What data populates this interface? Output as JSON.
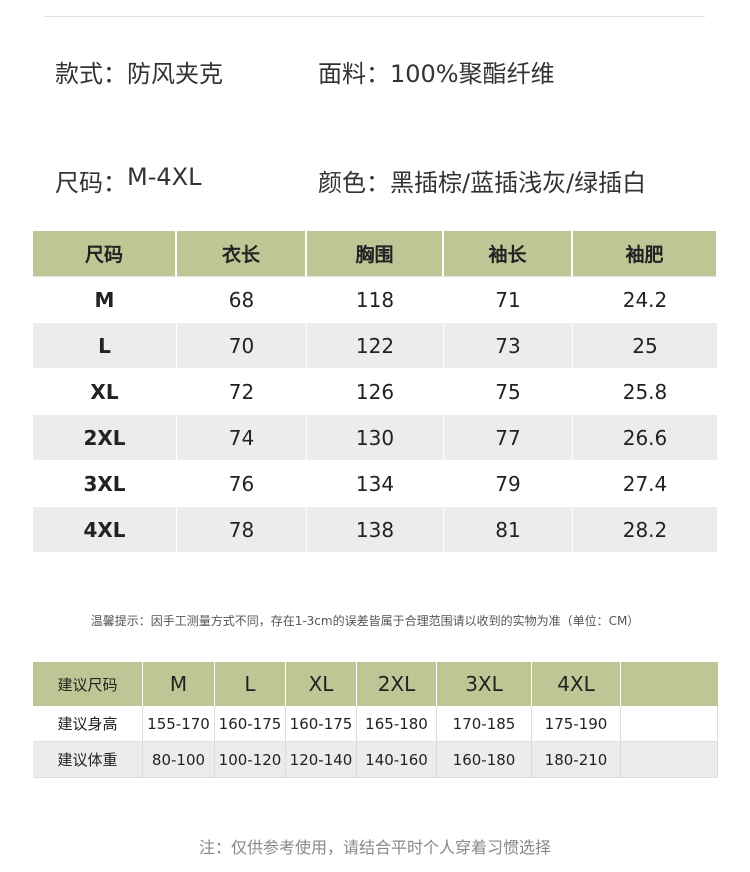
{
  "specs": [
    {
      "label": "款式：",
      "value": "防风夹克"
    },
    {
      "label": "面料：",
      "value": "100%聚酯纤维"
    },
    {
      "label": "尺码：",
      "value": "M-4XL"
    },
    {
      "label": "颜色：",
      "value": "黑插棕/蓝插浅灰/绿插白"
    }
  ],
  "size_table": {
    "header": [
      "尺码",
      "衣长",
      "胸围",
      "袖长",
      "袖肥"
    ],
    "rows": [
      [
        "M",
        "68",
        "118",
        "71",
        "24.2"
      ],
      [
        "L",
        "70",
        "122",
        "73",
        "25"
      ],
      [
        "XL",
        "72",
        "126",
        "75",
        "25.8"
      ],
      [
        "2XL",
        "74",
        "130",
        "77",
        "26.6"
      ],
      [
        "3XL",
        "76",
        "134",
        "79",
        "27.4"
      ],
      [
        "4XL",
        "78",
        "138",
        "81",
        "28.2"
      ]
    ]
  },
  "tip": "温馨提示：因手工测量方式不同，存在1-3cm的误差皆属于合理范围请以收到的实物为准（单位：CM）",
  "recommend_table": {
    "header": [
      "建议尺码",
      "M",
      "L",
      "XL",
      "2XL",
      "3XL",
      "4XL"
    ],
    "rows": [
      [
        "建议身高",
        "155-170",
        "160-175",
        "160-175",
        "165-180",
        "170-185",
        "175-190"
      ],
      [
        "建议体重",
        "80-100",
        "100-120",
        "120-140",
        "140-160",
        "160-180",
        "180-210"
      ]
    ]
  },
  "footnote": "注：仅供参考使用，请结合平时个人穿着习惯选择"
}
